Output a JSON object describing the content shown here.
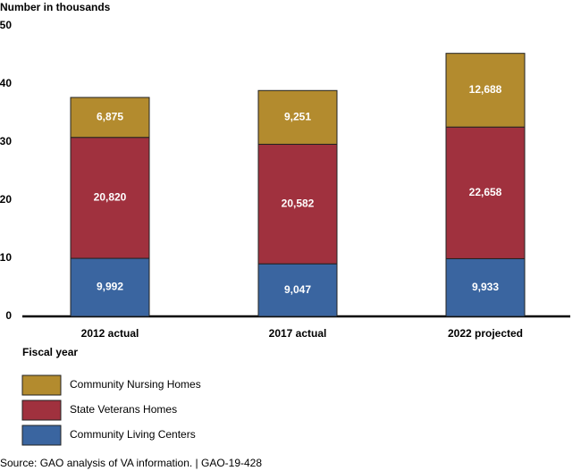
{
  "chart_data": {
    "type": "stacked_bar",
    "y_axis_label": "Number in thousands",
    "x_axis_label": "Fiscal year",
    "source": "Source: GAO analysis of VA information.  |  GAO-19-428",
    "categories": [
      "2012 actual",
      "2017 actual",
      "2022 projected"
    ],
    "series": [
      {
        "name": "Community Living Centers",
        "color": "#3a65a0",
        "values": [
          9.992,
          9.047,
          9.933
        ],
        "value_labels": [
          "9,992",
          "9,047",
          "9,933"
        ]
      },
      {
        "name": "State Veterans Homes",
        "color": "#a0313e",
        "values": [
          20.82,
          20.582,
          22.658
        ],
        "value_labels": [
          "20,820",
          "20,582",
          "22,658"
        ]
      },
      {
        "name": "Community Nursing Homes",
        "color": "#b38b2e",
        "values": [
          6.875,
          9.251,
          12.688
        ],
        "value_labels": [
          "6,875",
          "9,251",
          "12,688"
        ]
      }
    ],
    "ylim": [
      0,
      50
    ],
    "yticks": [
      0,
      10,
      20,
      30,
      40,
      50
    ],
    "grid": false
  }
}
